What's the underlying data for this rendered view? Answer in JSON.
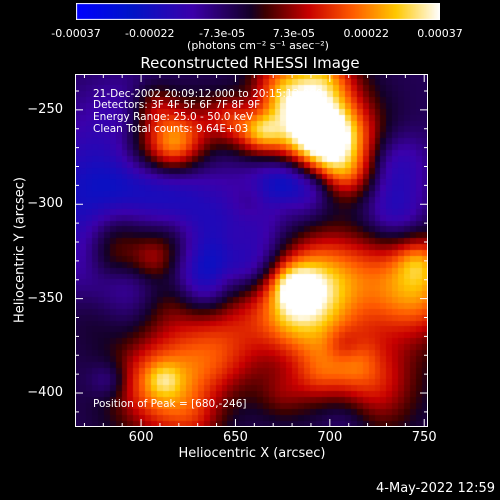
{
  "chart_data": {
    "type": "heatmap",
    "title": "Reconstructed RHESSI Image",
    "xlabel": "Heliocentric X (arcsec)",
    "ylabel": "Heliocentric Y (arcsec)",
    "xlim": [
      565,
      752
    ],
    "ylim": [
      -418,
      -231
    ],
    "x_ticks": [
      "600",
      "650",
      "700",
      "750"
    ],
    "x_tick_values": [
      600,
      650,
      700,
      750
    ],
    "y_ticks": [
      "-250",
      "-300",
      "-350",
      "-400"
    ],
    "y_tick_values": [
      -250,
      -300,
      -350,
      -400
    ],
    "colorbar": {
      "ticks": [
        "-0.00037",
        "-0.00022",
        "-7.3e-05",
        "7.3e-05",
        "0.00022",
        "0.00037"
      ],
      "tick_values": [
        -0.00037,
        -0.00022,
        -7.3e-05,
        7.3e-05,
        0.00022,
        0.00037
      ],
      "unit": "(photons cm⁻² s⁻¹ asec⁻²)",
      "range": [
        -0.00037,
        0.00037
      ]
    },
    "annotations": {
      "time": "21-Dec-2002 20:09:12.000 to 20:15:12.000",
      "detectors": "Detectors: 3F 4F 5F 6F 7F 8F 9F",
      "energy": "Energy Range: 25.0 - 50.0 keV",
      "method": "Clean     Total counts: 9.64E+03",
      "peak": "Position of Peak = [680,-246]"
    },
    "peak": [
      680,
      -246
    ],
    "hot_regions": [
      {
        "x": 680,
        "y": -246,
        "level": 1.0
      },
      {
        "x": 700,
        "y": -270,
        "level": 0.85
      },
      {
        "x": 610,
        "y": -400,
        "level": 0.85
      },
      {
        "x": 745,
        "y": -345,
        "level": 0.8
      },
      {
        "x": 640,
        "y": -375,
        "level": 0.7
      },
      {
        "x": 700,
        "y": -345,
        "level": 0.65
      },
      {
        "x": 720,
        "y": -395,
        "level": 0.55
      }
    ],
    "cold_regions": [
      {
        "x": 590,
        "y": -300,
        "level": -0.6
      },
      {
        "x": 625,
        "y": -340,
        "level": -0.45
      }
    ]
  },
  "footer": {
    "date": "4-May-2022 12:59"
  }
}
